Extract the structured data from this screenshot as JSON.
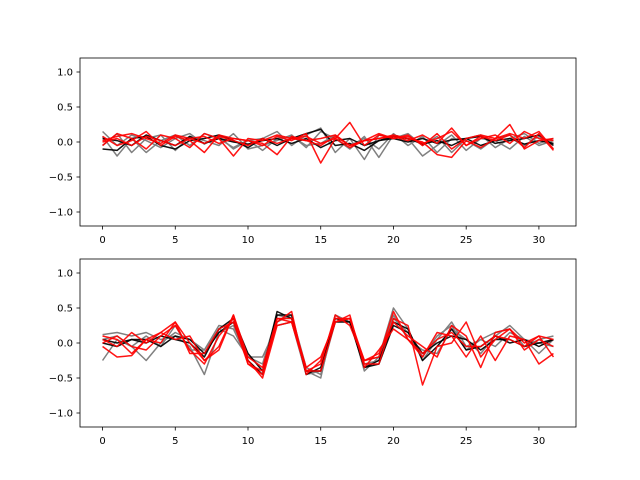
{
  "chart_data": [
    {
      "type": "line",
      "title": "",
      "xlabel": "",
      "ylabel": "",
      "xlim": [
        -1.55,
        32.55
      ],
      "ylim": [
        -1.2,
        1.2
      ],
      "xticks": [
        0,
        5,
        10,
        15,
        20,
        25,
        30
      ],
      "xtick_labels": [
        "0",
        "5",
        "10",
        "15",
        "20",
        "25",
        "30"
      ],
      "yticks": [
        -1.0,
        -0.5,
        0.0,
        0.5,
        1.0
      ],
      "ytick_labels": [
        "−1.0",
        "−0.5",
        "0.0",
        "0.5",
        "1.0"
      ],
      "grid": false,
      "legend": "none",
      "x": [
        0,
        1,
        2,
        3,
        4,
        5,
        6,
        7,
        8,
        9,
        10,
        11,
        12,
        13,
        14,
        15,
        16,
        17,
        18,
        19,
        20,
        21,
        22,
        23,
        24,
        25,
        26,
        27,
        28,
        29,
        30,
        31
      ],
      "series": [
        {
          "color": "#808080",
          "values": [
            0.15,
            -0.05,
            0.1,
            0.02,
            -0.08,
            0.05,
            0.12,
            -0.03,
            0.08,
            -0.1,
            0.02,
            0.05,
            0.15,
            -0.05,
            0.1,
            0.2,
            -0.15,
            0.05,
            -0.25,
            0.1,
            0.05,
            0.12,
            -0.05,
            0.08,
            -0.15,
            0.05,
            0.1,
            -0.08,
            0.05,
            0.12,
            -0.02,
            0.05
          ]
        },
        {
          "color": "#808080",
          "values": [
            -0.05,
            0.12,
            -0.15,
            0.05,
            0.1,
            -0.12,
            0.08,
            0.02,
            -0.05,
            0.12,
            -0.1,
            -0.05,
            0.02,
            0.1,
            -0.08,
            0.15,
            0.05,
            -0.1,
            0.08,
            -0.22,
            0.1,
            0.05,
            -0.2,
            -0.05,
            0.1,
            -0.12,
            0.05,
            0.02,
            -0.1,
            0.08,
            -0.05,
            0.02
          ]
        },
        {
          "color": "#808080",
          "values": [
            0.08,
            -0.2,
            0.05,
            -0.15,
            0.02,
            0.1,
            -0.05,
            0.12,
            0.05,
            -0.08,
            0.03,
            -0.12,
            0.05,
            0.08,
            -0.05,
            -0.02,
            0.1,
            -0.05,
            0.05,
            -0.1,
            0.12,
            -0.05,
            0.08,
            -0.15,
            0.05,
            0.02,
            -0.1,
            0.05,
            0.1,
            -0.05,
            0.08,
            -0.03
          ]
        },
        {
          "color": "#000000",
          "values": [
            -0.1,
            -0.12,
            0.05,
            0.08,
            -0.05,
            -0.1,
            0.02,
            0.05,
            0.1,
            0.02,
            -0.08,
            0.05,
            -0.05,
            0.05,
            0.12,
            0.18,
            -0.05,
            -0.02,
            -0.12,
            0.02,
            0.08,
            0.05,
            -0.03,
            0.02,
            -0.05,
            0.05,
            0.08,
            -0.02,
            0.02,
            0.05,
            0.1,
            -0.05
          ]
        },
        {
          "color": "#000000",
          "values": [
            0.05,
            0.02,
            -0.05,
            0.1,
            0.02,
            -0.05,
            0.08,
            -0.02,
            0.05,
            0.0,
            -0.03,
            0.02,
            0.05,
            -0.02,
            0.05,
            -0.08,
            0.02,
            0.05,
            -0.05,
            0.02,
            0.05,
            0.0,
            0.05,
            -0.02,
            0.03,
            0.05,
            -0.05,
            0.02,
            0.05,
            -0.03,
            0.02,
            -0.02
          ]
        },
        {
          "color": "#ff0000",
          "values": [
            0.02,
            0.08,
            0.12,
            0.05,
            -0.02,
            0.1,
            0.05,
            0.08,
            -0.02,
            0.05,
            0.02,
            -0.05,
            0.08,
            0.02,
            0.12,
            -0.3,
            0.05,
            0.28,
            -0.05,
            0.1,
            0.05,
            0.08,
            -0.02,
            0.05,
            0.15,
            -0.05,
            0.08,
            0.02,
            0.1,
            -0.08,
            0.12,
            -0.12
          ]
        },
        {
          "color": "#ff0000",
          "values": [
            0.08,
            -0.05,
            0.02,
            0.15,
            -0.05,
            0.08,
            0.02,
            -0.15,
            0.1,
            0.05,
            0.02,
            -0.02,
            -0.18,
            0.08,
            0.02,
            0.05,
            0.1,
            -0.05,
            0.02,
            0.12,
            0.05,
            0.1,
            -0.05,
            0.12,
            -0.1,
            0.05,
            0.1,
            0.05,
            0.25,
            -0.1,
            0.02,
            0.05
          ]
        },
        {
          "color": "#ff0000",
          "values": [
            -0.05,
            0.12,
            0.05,
            -0.1,
            0.1,
            0.05,
            -0.08,
            0.12,
            0.05,
            -0.2,
            0.05,
            0.02,
            0.1,
            0.05,
            0.02,
            -0.05,
            0.08,
            -0.05,
            0.02,
            0.05,
            0.08,
            0.02,
            0.1,
            -0.02,
            0.2,
            -0.05,
            0.05,
            0.1,
            -0.02,
            0.15,
            0.05,
            0.02
          ]
        },
        {
          "color": "#ff0000",
          "values": [
            0.0,
            0.05,
            -0.05,
            0.08,
            0.02,
            -0.05,
            0.05,
            -0.02,
            0.08,
            0.02,
            -0.05,
            0.05,
            -0.02,
            0.05,
            0.08,
            -0.02,
            0.05,
            -0.08,
            0.02,
            0.05,
            0.1,
            0.05,
            0.0,
            -0.18,
            -0.22,
            0.02,
            -0.08,
            0.05,
            0.12,
            0.05,
            0.15,
            -0.1
          ]
        }
      ]
    },
    {
      "type": "line",
      "title": "",
      "xlabel": "",
      "ylabel": "",
      "xlim": [
        -1.55,
        32.55
      ],
      "ylim": [
        -1.2,
        1.2
      ],
      "xticks": [
        0,
        5,
        10,
        15,
        20,
        25,
        30
      ],
      "xtick_labels": [
        "0",
        "5",
        "10",
        "15",
        "20",
        "25",
        "30"
      ],
      "yticks": [
        -1.0,
        -0.5,
        0.0,
        0.5,
        1.0
      ],
      "ytick_labels": [
        "−1.0",
        "−0.5",
        "0.0",
        "0.5",
        "1.0"
      ],
      "grid": false,
      "legend": "none",
      "x": [
        0,
        1,
        2,
        3,
        4,
        5,
        6,
        7,
        8,
        9,
        10,
        11,
        12,
        13,
        14,
        15,
        16,
        17,
        18,
        19,
        20,
        21,
        22,
        23,
        24,
        25,
        26,
        27,
        28,
        29,
        30,
        31
      ],
      "series": [
        {
          "color": "#808080",
          "values": [
            0.12,
            0.15,
            0.1,
            0.15,
            0.05,
            0.1,
            -0.05,
            -0.45,
            0.15,
            0.25,
            -0.2,
            -0.3,
            0.4,
            0.35,
            -0.4,
            -0.5,
            0.4,
            0.3,
            -0.25,
            -0.2,
            0.5,
            0.2,
            -0.25,
            0.05,
            0.3,
            -0.05,
            0.05,
            0.15,
            0.2,
            -0.05,
            0.05,
            0.1
          ]
        },
        {
          "color": "#808080",
          "values": [
            -0.25,
            0.05,
            -0.05,
            0.1,
            -0.05,
            0.25,
            -0.1,
            -0.1,
            0.25,
            0.2,
            -0.25,
            -0.45,
            0.3,
            0.4,
            -0.35,
            -0.45,
            0.3,
            0.35,
            -0.4,
            -0.2,
            0.35,
            0.15,
            -0.2,
            0.1,
            0.25,
            -0.1,
            0.05,
            -0.05,
            0.15,
            0.05,
            -0.15,
            0.05
          ]
        },
        {
          "color": "#808080",
          "values": [
            0.05,
            0.1,
            -0.05,
            -0.25,
            0.0,
            0.15,
            0.05,
            -0.1,
            0.2,
            0.1,
            -0.2,
            -0.2,
            0.25,
            0.3,
            -0.45,
            -0.4,
            0.4,
            0.3,
            -0.3,
            -0.25,
            0.4,
            0.05,
            -0.1,
            -0.15,
            0.2,
            0.05,
            -0.15,
            0.1,
            0.25,
            0.05,
            0.0,
            -0.05
          ]
        },
        {
          "color": "#000000",
          "values": [
            0.0,
            -0.05,
            0.05,
            0.0,
            0.1,
            0.05,
            0.0,
            -0.2,
            0.2,
            0.35,
            -0.15,
            -0.4,
            0.45,
            0.35,
            -0.4,
            -0.4,
            0.35,
            0.3,
            -0.35,
            -0.25,
            0.3,
            0.2,
            -0.25,
            -0.05,
            0.2,
            -0.1,
            -0.05,
            0.1,
            0.0,
            0.05,
            -0.05,
            0.05
          ]
        },
        {
          "color": "#000000",
          "values": [
            0.05,
            0.0,
            0.05,
            0.05,
            -0.05,
            0.1,
            0.05,
            -0.15,
            0.15,
            0.3,
            -0.25,
            -0.45,
            0.4,
            0.4,
            -0.45,
            -0.35,
            0.3,
            0.3,
            -0.35,
            -0.3,
            0.25,
            0.15,
            -0.15,
            0.0,
            0.1,
            0.05,
            -0.1,
            0.05,
            0.05,
            -0.05,
            0.0,
            0.05
          ]
        },
        {
          "color": "#ff0000",
          "values": [
            -0.05,
            -0.2,
            -0.18,
            0.05,
            0.0,
            0.3,
            0.0,
            -0.25,
            -0.1,
            0.4,
            -0.3,
            -0.4,
            0.3,
            0.45,
            -0.45,
            -0.25,
            0.35,
            0.35,
            -0.3,
            -0.3,
            0.35,
            0.25,
            -0.6,
            -0.05,
            0.0,
            0.3,
            -0.2,
            0.05,
            0.2,
            0.0,
            0.1,
            -0.2
          ]
        },
        {
          "color": "#ff0000",
          "values": [
            0.05,
            -0.05,
            0.15,
            0.0,
            0.15,
            0.05,
            0.1,
            -0.25,
            -0.05,
            0.4,
            -0.2,
            -0.35,
            0.35,
            0.3,
            -0.4,
            -0.3,
            0.4,
            0.25,
            -0.25,
            -0.15,
            0.3,
            0.1,
            -0.05,
            -0.2,
            0.25,
            0.1,
            -0.35,
            0.15,
            0.2,
            -0.1,
            0.05,
            -0.05
          ]
        },
        {
          "color": "#ff0000",
          "values": [
            0.1,
            0.05,
            -0.15,
            0.05,
            0.15,
            0.3,
            -0.15,
            -0.15,
            0.2,
            0.3,
            -0.3,
            -0.45,
            0.35,
            0.35,
            -0.35,
            -0.2,
            0.3,
            0.4,
            -0.35,
            -0.1,
            0.2,
            0.05,
            -0.2,
            0.15,
            0.1,
            -0.2,
            0.1,
            -0.25,
            0.1,
            0.05,
            -0.3,
            -0.15
          ]
        },
        {
          "color": "#ff0000",
          "values": [
            0.0,
            0.1,
            -0.05,
            -0.1,
            0.1,
            0.25,
            -0.1,
            -0.3,
            0.1,
            0.35,
            -0.25,
            -0.5,
            0.25,
            0.3,
            -0.4,
            -0.4,
            0.3,
            0.35,
            -0.25,
            -0.2,
            0.45,
            0.05,
            -0.15,
            0.05,
            0.15,
            -0.05,
            -0.05,
            0.1,
            0.05,
            -0.05,
            0.1,
            0.05
          ]
        }
      ]
    }
  ]
}
